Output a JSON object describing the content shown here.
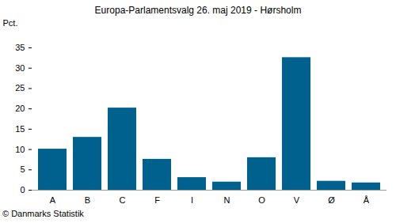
{
  "chart_data": {
    "type": "bar",
    "title": "Europa-Parlamentsvalg 26. maj 2019 - Hørsholm",
    "y_label": "Pct.",
    "caption": "© Danmarks Statistik",
    "categories": [
      "A",
      "B",
      "C",
      "F",
      "I",
      "N",
      "O",
      "V",
      "Ø",
      "Å"
    ],
    "values": [
      10.1,
      13.0,
      20.2,
      7.6,
      3.1,
      2.0,
      8.0,
      32.6,
      2.2,
      1.8
    ],
    "color": "#00618f",
    "ylim": [
      0,
      35
    ],
    "yticks": [
      0,
      5,
      10,
      15,
      20,
      25,
      30,
      35
    ],
    "grid": false
  }
}
